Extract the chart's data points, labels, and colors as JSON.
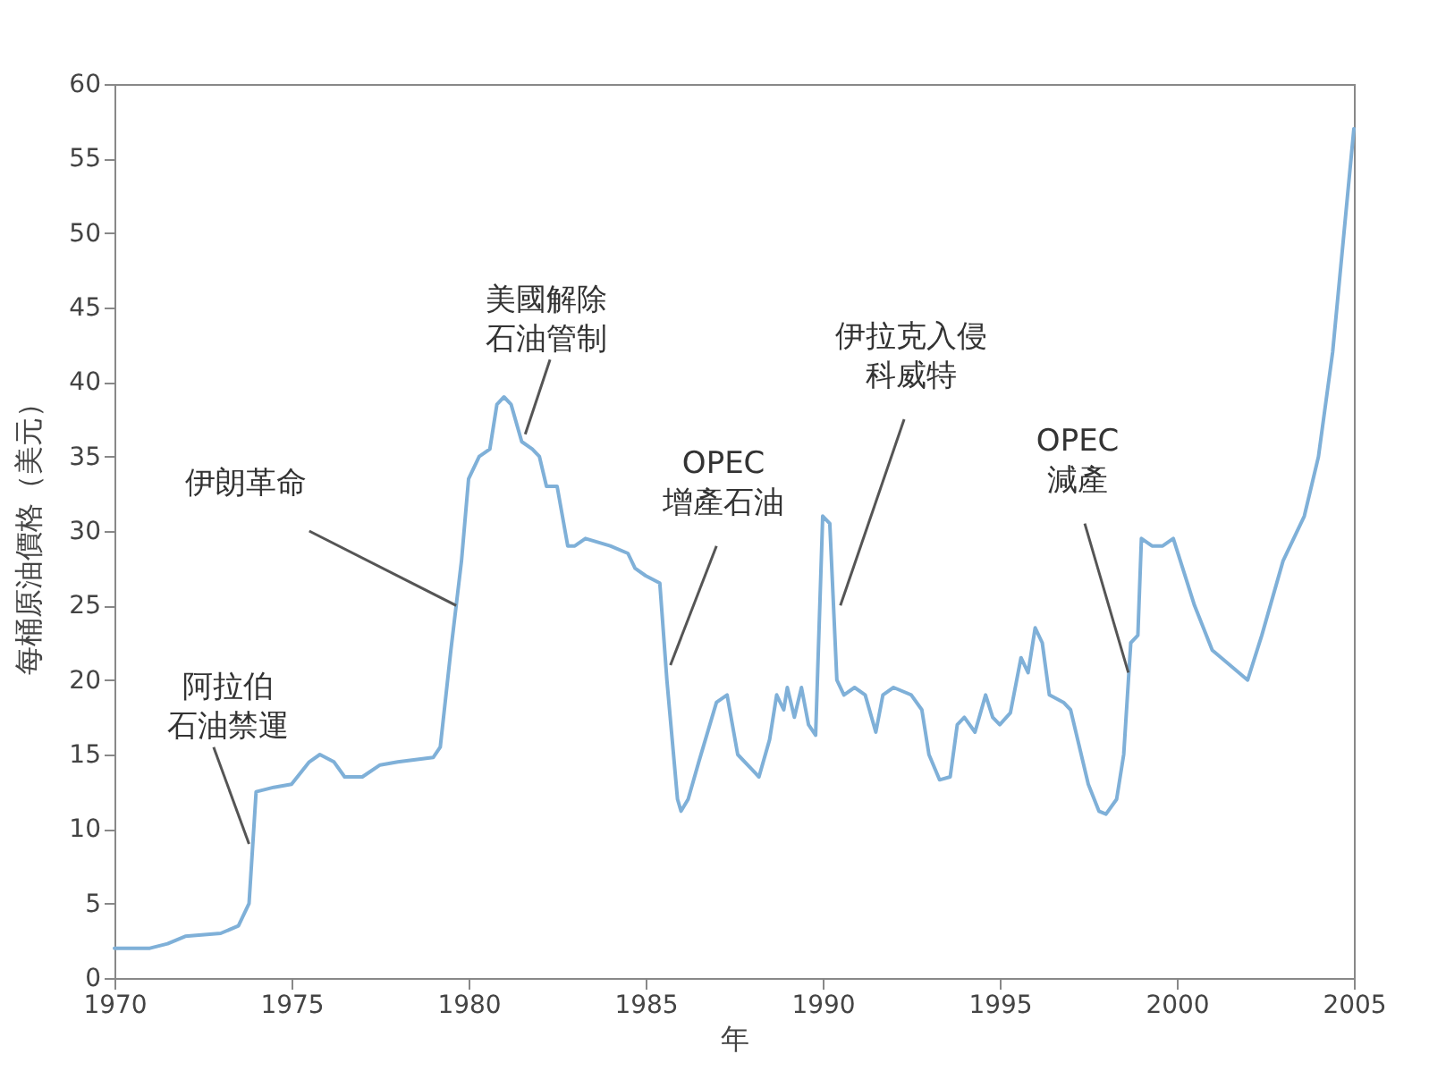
{
  "chart_data": {
    "type": "line",
    "xlabel": "年",
    "ylabel": "每桶原油價格（美元）",
    "x": [
      1970,
      1971,
      1971.5,
      1972,
      1973,
      1973.5,
      1973.8,
      1974,
      1974.5,
      1975,
      1975.5,
      1975.8,
      1976.2,
      1976.5,
      1977,
      1977.5,
      1978,
      1979,
      1979.2,
      1979.5,
      1979.8,
      1980,
      1980.3,
      1980.6,
      1980.8,
      1981,
      1981.2,
      1981.5,
      1981.8,
      1982,
      1982.2,
      1982.5,
      1982.8,
      1983,
      1983.3,
      1984,
      1984.5,
      1984.7,
      1985,
      1985.4,
      1985.6,
      1985.9,
      1986,
      1986.2,
      1986.5,
      1987,
      1987.3,
      1987.6,
      1988,
      1988.2,
      1988.5,
      1988.7,
      1988.9,
      1989,
      1989.2,
      1989.4,
      1989.6,
      1989.8,
      1990,
      1990.2,
      1990.4,
      1990.6,
      1990.9,
      1991.2,
      1991.5,
      1991.7,
      1992,
      1992.5,
      1992.8,
      1993,
      1993.3,
      1993.6,
      1993.8,
      1994,
      1994.3,
      1994.6,
      1994.8,
      1995,
      1995.3,
      1995.6,
      1995.8,
      1996,
      1996.2,
      1996.4,
      1996.8,
      1997,
      1997.2,
      1997.5,
      1997.8,
      1998,
      1998.3,
      1998.5,
      1998.7,
      1998.9,
      1999,
      1999.3,
      1999.6,
      1999.9,
      2000.5,
      2001,
      2002,
      2002.4,
      2003,
      2003.6,
      2004,
      2004.4,
      2005
    ],
    "series": [
      {
        "color": "#7fb0d8",
        "values": [
          2,
          2,
          2.3,
          2.8,
          3,
          3.5,
          5,
          12.5,
          12.8,
          13,
          14.5,
          15,
          14.5,
          13.5,
          13.5,
          14.3,
          14.5,
          14.8,
          15.5,
          22,
          28,
          33.5,
          35,
          35.5,
          38.5,
          39,
          38.5,
          36,
          35.5,
          35,
          33,
          33,
          29,
          29,
          29.5,
          29,
          28.5,
          27.5,
          27,
          26.5,
          20,
          12,
          11.2,
          12,
          14.5,
          18.5,
          19,
          15,
          14,
          13.5,
          16,
          19,
          18,
          19.5,
          17.5,
          19.5,
          17,
          16.3,
          31,
          30.5,
          20,
          19,
          19.5,
          19,
          16.5,
          19,
          19.5,
          19,
          18,
          15,
          13.3,
          13.5,
          17,
          17.5,
          16.5,
          19,
          17.5,
          17,
          17.8,
          21.5,
          20.5,
          23.5,
          22.5,
          19,
          18.5,
          18,
          16,
          13,
          11.2,
          11,
          12,
          15,
          22.5,
          23,
          29.5,
          29,
          29,
          29.5,
          25,
          22,
          20,
          23,
          28,
          31,
          35,
          42,
          57
        ]
      }
    ],
    "xlim": [
      1970,
      2005
    ],
    "xticks": [
      1970,
      1975,
      1980,
      1985,
      1990,
      1995,
      2000,
      2005
    ],
    "ylim": [
      0,
      60
    ],
    "yticks": [
      0,
      5,
      10,
      15,
      20,
      25,
      30,
      35,
      40,
      45,
      50,
      55,
      60
    ],
    "grid": false,
    "annotations": [
      {
        "text": "阿拉伯石油禁運",
        "x": 1973.8,
        "y": 9
      },
      {
        "text": "伊朗革命",
        "x": 1979.65,
        "y": 25
      },
      {
        "text": "美國解除石油管制",
        "x": 1981.6,
        "y": 36.5
      },
      {
        "text": "OPEC增產石油",
        "x": 1985.7,
        "y": 21
      },
      {
        "text": "伊拉克入侵科威特",
        "x": 1990.5,
        "y": 25
      },
      {
        "text": "OPEC減產",
        "x": 1998.63,
        "y": 20.5
      }
    ]
  }
}
